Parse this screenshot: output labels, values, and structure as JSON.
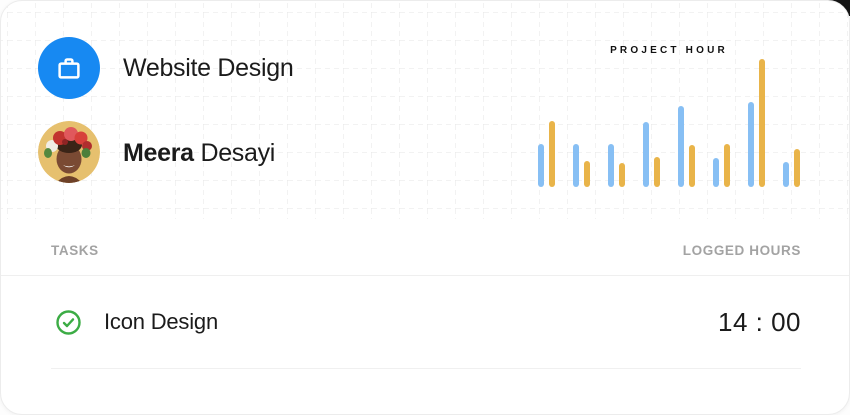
{
  "card": {
    "project": {
      "title": "Website Design"
    },
    "user": {
      "first_name": "Meera",
      "last_name": "Desayi"
    },
    "table": {
      "tasks_header": "TASKS",
      "logged_hours_header": "LOGGED HOURS",
      "rows": [
        {
          "task": "Icon Design",
          "logged_hours": "14 : 00",
          "status": "completed"
        }
      ]
    }
  },
  "colors": {
    "accent_blue": "#1789F2",
    "bar_blue": "#87BFF4",
    "bar_yellow": "#E9B449",
    "check_green": "#3CAC45"
  },
  "icons": {
    "project_badge": "briefcase-icon",
    "task_status": "check-circle-icon"
  },
  "chart_data": {
    "type": "bar",
    "title": "PROJECT HOUR",
    "categories": [
      "1",
      "2",
      "3",
      "4",
      "5",
      "6",
      "7",
      "8"
    ],
    "series": [
      {
        "name": "blue",
        "color": "#87BFF4",
        "values": [
          43,
          43,
          43,
          65,
          81,
          29,
          85,
          25
        ]
      },
      {
        "name": "yellow",
        "color": "#E9B449",
        "values": [
          66,
          26,
          24,
          30,
          42,
          43,
          128,
          38
        ]
      }
    ],
    "ylim": [
      0,
      130
    ],
    "xlabel": "",
    "ylabel": "",
    "grid": false,
    "legend": "none",
    "axis_labels_visible": false
  }
}
